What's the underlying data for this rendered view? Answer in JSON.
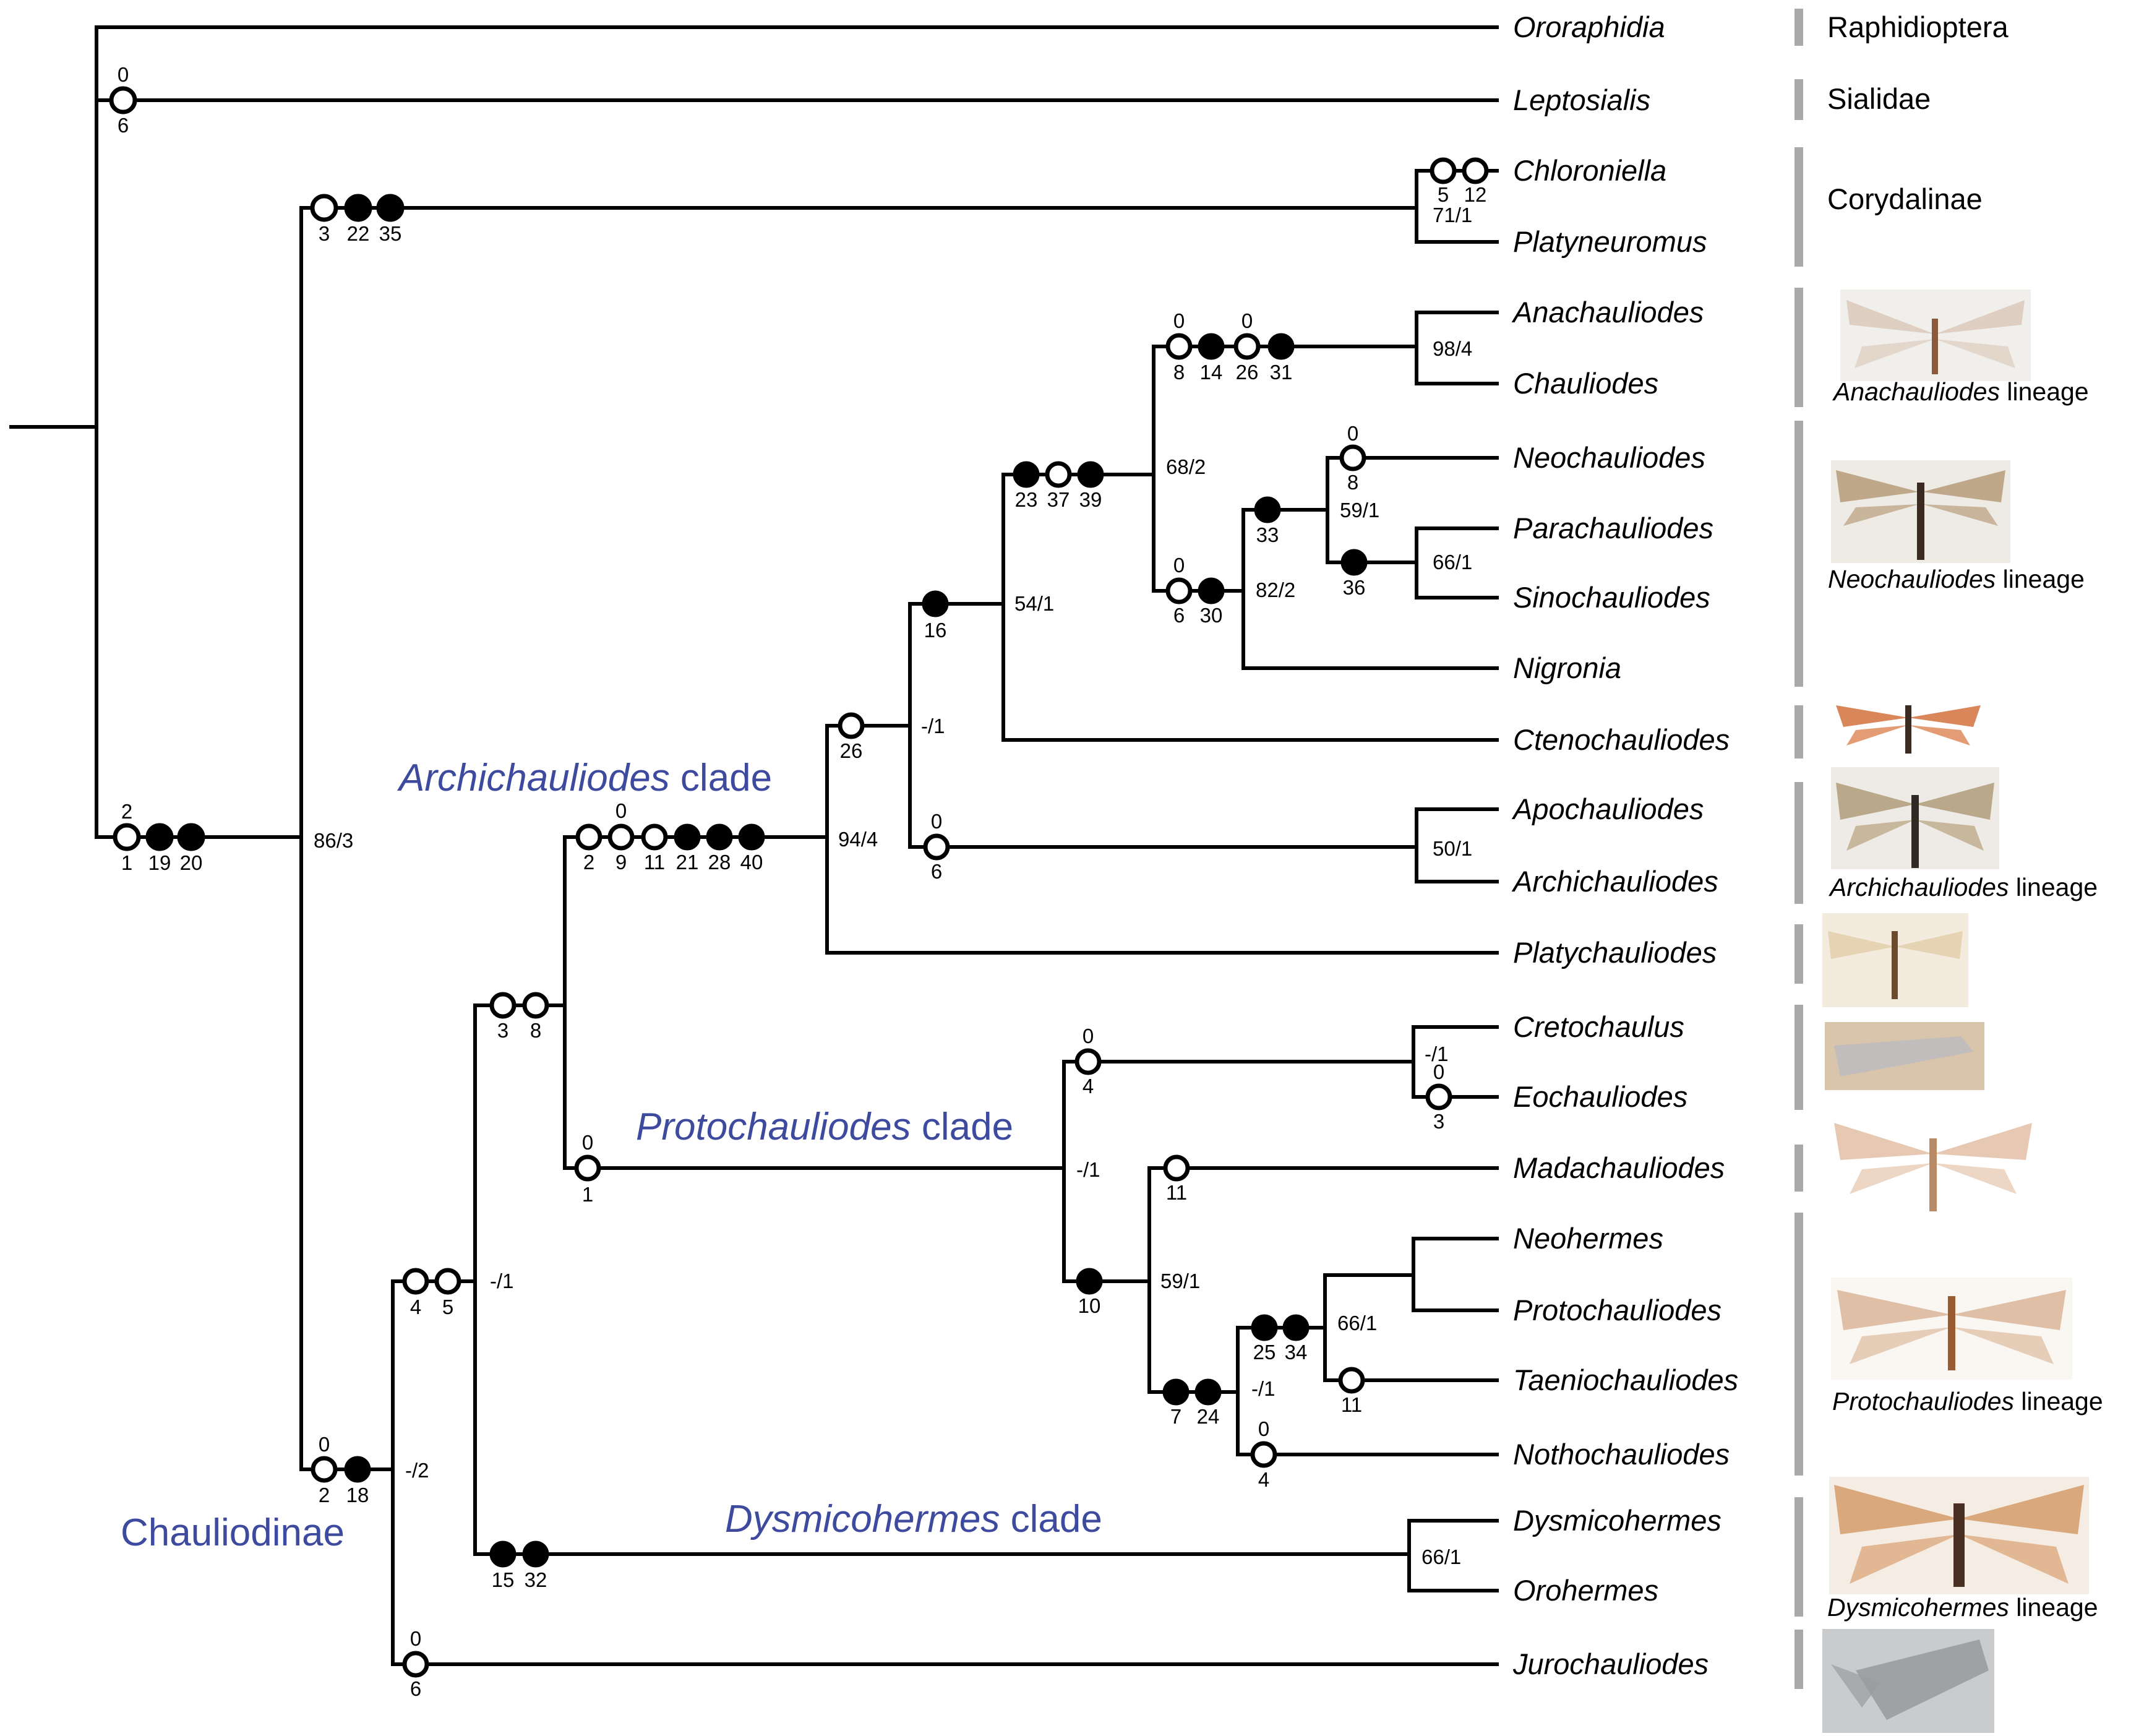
{
  "taxa": [
    "Ororaphidia",
    "Leptosialis",
    "Chloroniella",
    "Platyneuromus",
    "Anachauliodes",
    "Chauliodes",
    "Neochauliodes",
    "Parachauliodes",
    "Sinochauliodes",
    "Nigronia",
    "Ctenochauliodes",
    "Apochauliodes",
    "Archichauliodes",
    "Platychauliodes",
    "Cretochaulus",
    "Eochauliodes",
    "Madachauliodes",
    "Neohermes",
    "Protochauliodes",
    "Taeniochauliodes",
    "Nothochauliodes",
    "Dysmicohermes",
    "Orohermes",
    "Jurochauliodes"
  ],
  "groups": {
    "raphidioptera": "Raphidioptera",
    "sialidae": "Sialidae",
    "corydalinae": "Corydalinae"
  },
  "clades": {
    "archichauliodes": {
      "italic": "Archichauliodes",
      "rest": " clade"
    },
    "protochauliodes": {
      "italic": "Protochauliodes",
      "rest": " clade"
    },
    "dysmicohermes": {
      "italic": "Dysmicohermes",
      "rest": " clade"
    },
    "chauliodinae": "Chauliodinae"
  },
  "lineages": {
    "anachauliodes": {
      "italic": "Anachauliodes",
      "rest": " lineage"
    },
    "neochauliodes": {
      "italic": "Neochauliodes",
      "rest": " lineage"
    },
    "archichauliodes": {
      "italic": "Archichauliodes",
      "rest": " lineage"
    },
    "protochauliodes": {
      "italic": "Protochauliodes",
      "rest": " lineage"
    },
    "dysmicohermes": {
      "italic": "Dysmicohermes",
      "rest": " lineage"
    }
  },
  "support": {
    "chauliodinae": "86/3",
    "corydalinae_tips": "71/1",
    "anachauliodes_chauliodes": "98/4",
    "anachauliodes_neochauliodes_lineages": "68/2",
    "neochauliodes_lineage": "82/2",
    "neochauliodes_clade": "59/1",
    "parachauliodes_sinochauliodes": "66/1",
    "n16": "54/1",
    "n26": "-/1",
    "archichauliodes_clade": "94/4",
    "apochauliodes_archichauliodes": "50/1",
    "cretochaulus_eochauliodes": "-/1",
    "protochauliodes_clade": "-/1",
    "n10": "59/1",
    "n7_24": "-/1",
    "n25_34": "66/1",
    "n4_5": "-/1",
    "root_chauliodinae": "-/2",
    "dysmicohermes_orohermes": "66/1"
  },
  "characters": {
    "leptosialis": [
      {
        "open": true,
        "char": "6",
        "state": "0"
      }
    ],
    "root_chaul": [
      {
        "open": true,
        "char": "1",
        "state": "2"
      },
      {
        "open": false,
        "char": "19"
      },
      {
        "open": false,
        "char": "20"
      }
    ],
    "corydalinae": [
      {
        "open": true,
        "char": "3"
      },
      {
        "open": false,
        "char": "22"
      },
      {
        "open": false,
        "char": "35"
      }
    ],
    "chloroniella": [
      {
        "open": true,
        "char": "5"
      },
      {
        "open": true,
        "char": "12"
      }
    ],
    "ana_chau": [
      {
        "open": true,
        "char": "8",
        "state": "0"
      },
      {
        "open": false,
        "char": "14"
      },
      {
        "open": true,
        "char": "26",
        "state": "0"
      },
      {
        "open": false,
        "char": "31"
      }
    ],
    "neochauliodes": [
      {
        "open": true,
        "char": "8",
        "state": "0"
      }
    ],
    "n33": [
      {
        "open": false,
        "char": "33"
      }
    ],
    "n36": [
      {
        "open": false,
        "char": "36"
      }
    ],
    "n6_30": [
      {
        "open": true,
        "char": "6",
        "state": "0"
      },
      {
        "open": false,
        "char": "30"
      }
    ],
    "n23_37_39": [
      {
        "open": false,
        "char": "23"
      },
      {
        "open": true,
        "char": "37"
      },
      {
        "open": false,
        "char": "39"
      }
    ],
    "n16": [
      {
        "open": false,
        "char": "16"
      }
    ],
    "n26": [
      {
        "open": true,
        "char": "26"
      }
    ],
    "apo_archi": [
      {
        "open": true,
        "char": "6",
        "state": "0"
      }
    ],
    "archi_clade": [
      {
        "open": true,
        "char": "2"
      },
      {
        "open": true,
        "char": "9",
        "state": "0"
      },
      {
        "open": true,
        "char": "11"
      },
      {
        "open": false,
        "char": "21"
      },
      {
        "open": false,
        "char": "28"
      },
      {
        "open": false,
        "char": "40"
      }
    ],
    "n3_8": [
      {
        "open": true,
        "char": "3"
      },
      {
        "open": true,
        "char": "8"
      }
    ],
    "creto_eoch": [
      {
        "open": true,
        "char": "4",
        "state": "0"
      }
    ],
    "eochauliodes": [
      {
        "open": true,
        "char": "3",
        "state": "0"
      }
    ],
    "proto_clade": [
      {
        "open": true,
        "char": "1",
        "state": "0"
      }
    ],
    "madachauliodes": [
      {
        "open": true,
        "char": "11"
      }
    ],
    "n10": [
      {
        "open": false,
        "char": "10"
      }
    ],
    "n7_24": [
      {
        "open": false,
        "char": "7"
      },
      {
        "open": false,
        "char": "24"
      }
    ],
    "n25_34": [
      {
        "open": false,
        "char": "25"
      },
      {
        "open": false,
        "char": "34"
      }
    ],
    "taeniochauliodes": [
      {
        "open": true,
        "char": "11"
      }
    ],
    "nothochauliodes": [
      {
        "open": true,
        "char": "4",
        "state": "0"
      }
    ],
    "n4_5": [
      {
        "open": true,
        "char": "4"
      },
      {
        "open": true,
        "char": "5"
      }
    ],
    "dysmico_clade": [
      {
        "open": false,
        "char": "15"
      },
      {
        "open": false,
        "char": "32"
      }
    ],
    "chaul_root": [
      {
        "open": true,
        "char": "2",
        "state": "0"
      },
      {
        "open": false,
        "char": "18"
      }
    ],
    "jurochauliodes": [
      {
        "open": true,
        "char": "6",
        "state": "0"
      }
    ]
  },
  "colors": {
    "clade_label": "#3d4a9e",
    "bars": "#a9a9a9",
    "branches": "#000000"
  }
}
